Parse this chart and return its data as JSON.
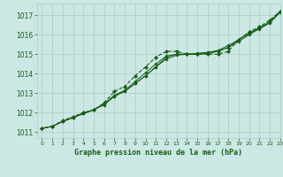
{
  "title": "Graphe pression niveau de la mer (hPa)",
  "bg_color": "#cce8e4",
  "grid_color": "#aaccC8",
  "line_color": "#1a5c1a",
  "text_color": "#1a5c1a",
  "xlim": [
    -0.5,
    23
  ],
  "ylim": [
    1010.7,
    1017.6
  ],
  "yticks": [
    1011,
    1012,
    1013,
    1014,
    1015,
    1016,
    1017
  ],
  "xticks": [
    0,
    1,
    2,
    3,
    4,
    5,
    6,
    7,
    8,
    9,
    10,
    11,
    12,
    13,
    14,
    15,
    16,
    17,
    18,
    19,
    20,
    21,
    22,
    23
  ],
  "series_dashed": [
    1011.2,
    1011.3,
    1011.6,
    1011.8,
    1012.0,
    1012.15,
    1012.5,
    1013.1,
    1013.35,
    1013.9,
    1014.35,
    1014.85,
    1015.15,
    1015.15,
    1015.0,
    1015.0,
    1015.0,
    1015.0,
    1015.15,
    1015.75,
    1016.15,
    1016.4,
    1016.75,
    1017.2
  ],
  "series_solid1": [
    1011.2,
    1011.3,
    1011.55,
    1011.75,
    1011.95,
    1012.15,
    1012.45,
    1012.85,
    1013.1,
    1013.5,
    1013.9,
    1014.35,
    1014.85,
    1015.0,
    1015.0,
    1015.0,
    1015.05,
    1015.15,
    1015.35,
    1015.75,
    1016.05,
    1016.35,
    1016.65,
    1017.2
  ],
  "series_solid2": [
    1011.2,
    1011.3,
    1011.55,
    1011.75,
    1011.95,
    1012.15,
    1012.4,
    1012.85,
    1013.1,
    1013.5,
    1013.9,
    1014.35,
    1014.75,
    1014.95,
    1015.0,
    1015.0,
    1015.05,
    1015.15,
    1015.35,
    1015.65,
    1016.0,
    1016.3,
    1016.6,
    1017.15
  ],
  "series_solid3": [
    1011.2,
    1011.3,
    1011.55,
    1011.75,
    1012.0,
    1012.15,
    1012.45,
    1012.9,
    1013.15,
    1013.6,
    1014.05,
    1014.5,
    1014.9,
    1015.0,
    1015.0,
    1015.05,
    1015.1,
    1015.2,
    1015.45,
    1015.75,
    1016.1,
    1016.35,
    1016.65,
    1017.2
  ]
}
